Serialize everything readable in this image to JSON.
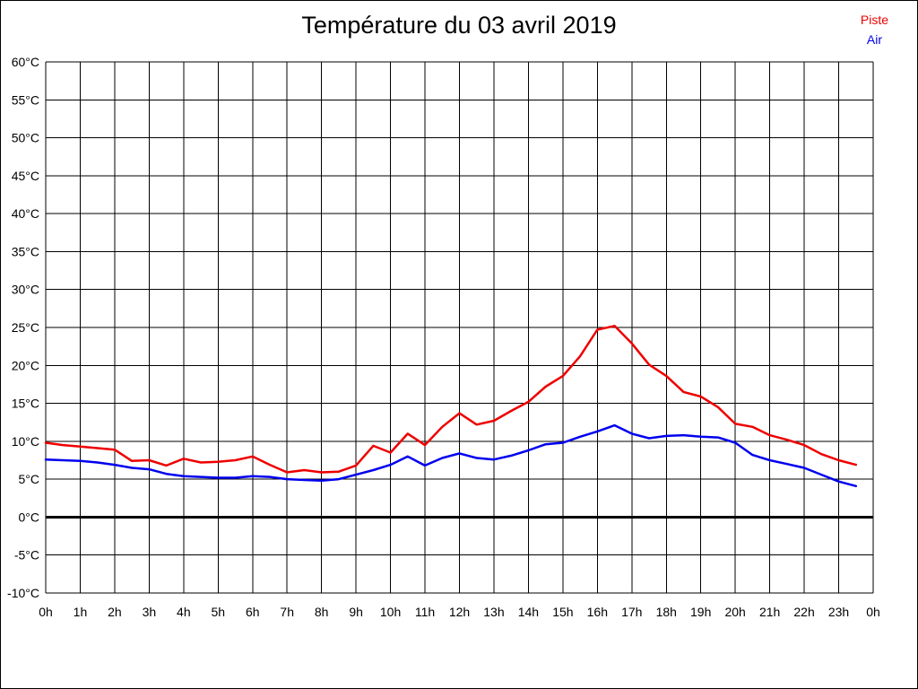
{
  "title": "Température du 03 avril 2019",
  "legend": [
    {
      "label": "Piste",
      "color": "#ee0000"
    },
    {
      "label": "Air",
      "color": "#0000ee"
    }
  ],
  "chart_data": {
    "type": "line",
    "title": "Température du 03 avril 2019",
    "xlabel": "",
    "ylabel": "",
    "x_unit": "hour of day",
    "xlim": [
      0,
      24
    ],
    "ylim": [
      -10,
      60
    ],
    "ytick_step": 5,
    "ytick_suffix": "°C",
    "xtick_labels": [
      "0h",
      "1h",
      "2h",
      "3h",
      "4h",
      "5h",
      "6h",
      "7h",
      "8h",
      "9h",
      "10h",
      "11h",
      "12h",
      "13h",
      "14h",
      "15h",
      "16h",
      "17h",
      "18h",
      "19h",
      "20h",
      "21h",
      "22h",
      "23h",
      "0h"
    ],
    "grid": true,
    "grid_color": "#000000",
    "zero_line_bold": true,
    "legend_position": "top-right",
    "x": [
      0,
      0.5,
      1,
      1.5,
      2,
      2.5,
      3,
      3.5,
      4,
      4.5,
      5,
      5.5,
      6,
      6.5,
      7,
      7.5,
      8,
      8.5,
      9,
      9.5,
      10,
      10.5,
      11,
      11.5,
      12,
      12.5,
      13,
      13.5,
      14,
      14.5,
      15,
      15.5,
      16,
      16.5,
      17,
      17.5,
      18,
      18.5,
      19,
      19.5,
      20,
      20.5,
      21,
      21.5,
      22,
      22.5,
      23,
      23.5
    ],
    "series": [
      {
        "name": "Piste",
        "color": "#ee0000",
        "values": [
          9.8,
          9.5,
          9.3,
          9.1,
          8.9,
          7.4,
          7.5,
          6.8,
          7.7,
          7.2,
          7.3,
          7.5,
          8.0,
          6.9,
          5.9,
          6.2,
          5.9,
          6.0,
          6.8,
          9.4,
          8.5,
          11.0,
          9.5,
          11.9,
          13.7,
          12.2,
          12.7,
          14.0,
          15.2,
          17.2,
          18.6,
          21.2,
          24.7,
          25.2,
          22.9,
          20.1,
          18.6,
          16.5,
          15.9,
          14.5,
          12.3,
          11.9,
          10.8,
          10.2,
          9.5,
          8.3,
          7.5,
          6.9
        ]
      },
      {
        "name": "Air",
        "color": "#0000ee",
        "values": [
          7.6,
          7.5,
          7.4,
          7.2,
          6.9,
          6.5,
          6.3,
          5.7,
          5.4,
          5.3,
          5.2,
          5.2,
          5.4,
          5.3,
          5.0,
          4.9,
          4.8,
          5.0,
          5.6,
          6.2,
          6.9,
          8.0,
          6.8,
          7.8,
          8.4,
          7.8,
          7.6,
          8.1,
          8.8,
          9.6,
          9.8,
          10.6,
          11.3,
          12.1,
          11.0,
          10.4,
          10.7,
          10.8,
          10.6,
          10.5,
          9.8,
          8.2,
          7.5,
          7.0,
          6.5,
          5.6,
          4.7,
          4.1
        ]
      }
    ]
  }
}
